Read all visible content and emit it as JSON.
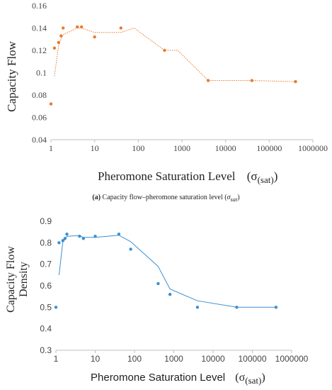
{
  "chart_data": [
    {
      "type": "scatter",
      "x_scale": "log",
      "xlabel": "Pheromone Saturation Level",
      "xlabel_symbol": "(σ",
      "xlabel_sub": "(sat)",
      "xlabel_close": ")",
      "ylabel": "Capacity Flow",
      "ylim": [
        0.04,
        0.16
      ],
      "xlim": [
        1,
        1000000
      ],
      "y_ticks": [
        "0.04",
        "0.06",
        "0.08",
        "0.1",
        "0.12",
        "0.14",
        "0.16"
      ],
      "y_tick_values": [
        0.04,
        0.06,
        0.08,
        0.1,
        0.12,
        0.14,
        0.16
      ],
      "x_ticks": [
        "1",
        "10",
        "100",
        "1000",
        "10000",
        "100000",
        "1000000"
      ],
      "x_tick_values": [
        1,
        10,
        100,
        1000,
        10000,
        100000,
        1000000
      ],
      "grid": false,
      "color": "#e87b2e",
      "points": [
        {
          "x": 1.0,
          "y": 0.072
        },
        {
          "x": 1.2,
          "y": 0.122
        },
        {
          "x": 1.5,
          "y": 0.127
        },
        {
          "x": 1.7,
          "y": 0.133
        },
        {
          "x": 1.9,
          "y": 0.14
        },
        {
          "x": 4.0,
          "y": 0.141
        },
        {
          "x": 5.0,
          "y": 0.141
        },
        {
          "x": 10,
          "y": 0.132
        },
        {
          "x": 40,
          "y": 0.14
        },
        {
          "x": 400,
          "y": 0.12
        },
        {
          "x": 4000,
          "y": 0.093
        },
        {
          "x": 40000,
          "y": 0.093
        },
        {
          "x": 400000,
          "y": 0.092
        }
      ],
      "trend": [
        {
          "x": 1.2,
          "y": 0.097
        },
        {
          "x": 1.5,
          "y": 0.125
        },
        {
          "x": 1.7,
          "y": 0.13
        },
        {
          "x": 1.9,
          "y": 0.134
        },
        {
          "x": 4.0,
          "y": 0.14
        },
        {
          "x": 5.0,
          "y": 0.14
        },
        {
          "x": 10,
          "y": 0.136
        },
        {
          "x": 40,
          "y": 0.136
        },
        {
          "x": 80,
          "y": 0.14
        },
        {
          "x": 400,
          "y": 0.12
        },
        {
          "x": 800,
          "y": 0.12
        },
        {
          "x": 4000,
          "y": 0.093
        },
        {
          "x": 40000,
          "y": 0.093
        },
        {
          "x": 400000,
          "y": 0.092
        }
      ]
    },
    {
      "type": "scatter",
      "x_scale": "log",
      "xlabel": "Pheromone Saturation Level",
      "xlabel_symbol": "(σ",
      "xlabel_sub": "(sat)",
      "xlabel_close": ")",
      "ylabel_line1": "Capacity Flow",
      "ylabel_line2": "Density",
      "ylim": [
        0.3,
        0.9
      ],
      "xlim": [
        1,
        1000000
      ],
      "y_ticks": [
        "0.3",
        "0.4",
        "0.5",
        "0.6",
        "0.7",
        "0.8",
        "0.9"
      ],
      "y_tick_values": [
        0.3,
        0.4,
        0.5,
        0.6,
        0.7,
        0.8,
        0.9
      ],
      "x_ticks": [
        "1",
        "10",
        "100",
        "1000",
        "10000",
        "100000",
        "1000000"
      ],
      "x_tick_values": [
        1,
        10,
        100,
        1000,
        10000,
        100000,
        1000000
      ],
      "grid": false,
      "color": "#3d8fd1",
      "points": [
        {
          "x": 1.0,
          "y": 0.5
        },
        {
          "x": 1.2,
          "y": 0.8
        },
        {
          "x": 1.5,
          "y": 0.81
        },
        {
          "x": 1.7,
          "y": 0.82
        },
        {
          "x": 1.9,
          "y": 0.84
        },
        {
          "x": 4.0,
          "y": 0.83
        },
        {
          "x": 5.0,
          "y": 0.82
        },
        {
          "x": 10,
          "y": 0.83
        },
        {
          "x": 40,
          "y": 0.84
        },
        {
          "x": 80,
          "y": 0.77
        },
        {
          "x": 400,
          "y": 0.61
        },
        {
          "x": 800,
          "y": 0.56
        },
        {
          "x": 4000,
          "y": 0.5
        },
        {
          "x": 40000,
          "y": 0.5
        },
        {
          "x": 400000,
          "y": 0.5
        }
      ],
      "trend": [
        {
          "x": 1.2,
          "y": 0.65
        },
        {
          "x": 1.5,
          "y": 0.805
        },
        {
          "x": 1.7,
          "y": 0.815
        },
        {
          "x": 1.9,
          "y": 0.83
        },
        {
          "x": 4.0,
          "y": 0.833
        },
        {
          "x": 5.0,
          "y": 0.825
        },
        {
          "x": 10,
          "y": 0.825
        },
        {
          "x": 40,
          "y": 0.835
        },
        {
          "x": 80,
          "y": 0.805
        },
        {
          "x": 400,
          "y": 0.69
        },
        {
          "x": 800,
          "y": 0.585
        },
        {
          "x": 4000,
          "y": 0.53
        },
        {
          "x": 40000,
          "y": 0.5
        },
        {
          "x": 400000,
          "y": 0.5
        }
      ]
    }
  ],
  "caption": {
    "label": "(a)",
    "text": " Capacity flow–pheromone saturation level (",
    "symbol": "σ",
    "sub": "sat",
    "close": ")"
  }
}
